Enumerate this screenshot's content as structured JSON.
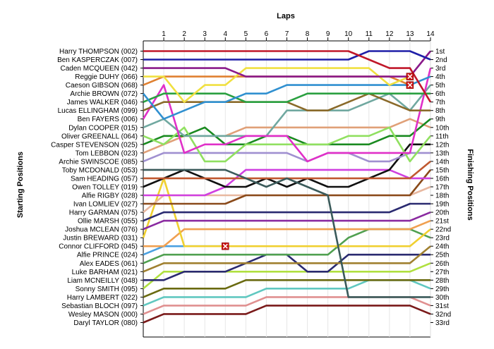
{
  "chart_data": {
    "type": "line",
    "title": "",
    "xlabel": "Laps",
    "ylabel_left": "Starting Positions",
    "ylabel_right": "Finishing Positions",
    "x": [
      0,
      1,
      2,
      3,
      4,
      5,
      6,
      7,
      8,
      9,
      10,
      11,
      12,
      13,
      14
    ],
    "x_tick_labels": [
      "1",
      "2",
      "3",
      "4",
      "5",
      "6",
      "7",
      "8",
      "9",
      "10",
      "11",
      "12",
      "13",
      "14"
    ],
    "y_tick_labels_right": [
      "1st",
      "2nd",
      "3rd",
      "4th",
      "5th",
      "6th",
      "7th",
      "8th",
      "9th",
      "10th",
      "11th",
      "12th",
      "13th",
      "14th",
      "15th",
      "16th",
      "17th",
      "18th",
      "19th",
      "20th",
      "21st",
      "22nd",
      "23rd",
      "24th",
      "25th",
      "26th",
      "27th",
      "28th",
      "29th",
      "30th",
      "31st",
      "32nd",
      "33rd"
    ],
    "grid": true,
    "series": [
      {
        "name": "Harry THOMPSON (002)",
        "color": "#c0182a",
        "positions": [
          1,
          1,
          1,
          1,
          1,
          1,
          1,
          1,
          1,
          1,
          1,
          2,
          3,
          3,
          7
        ]
      },
      {
        "name": "Ben KASPERCZAK (007)",
        "color": "#1f1fa8",
        "positions": [
          2,
          2,
          2,
          2,
          2,
          2,
          2,
          2,
          2,
          2,
          2,
          1,
          1,
          1,
          2
        ]
      },
      {
        "name": "Caden MCQUEEN (042)",
        "color": "#8a1a8a",
        "positions": [
          3,
          3,
          3,
          3,
          3,
          4,
          4,
          4,
          4,
          4,
          4,
          4,
          4,
          4,
          1
        ]
      },
      {
        "name": "Reggie DUHY (066)",
        "color": "#f0e040",
        "positions": [
          4,
          4,
          7,
          5,
          5,
          3,
          3,
          3,
          3,
          3,
          3,
          3,
          5,
          4,
          null
        ],
        "dnf": 13
      },
      {
        "name": "Caeson GIBSON (068)",
        "color": "#e08030",
        "positions": [
          5,
          4,
          4,
          4,
          4,
          4,
          4,
          4,
          4,
          4,
          4,
          4,
          4,
          5,
          null
        ],
        "dnf": 13
      },
      {
        "name": "Archie BROWN (072)",
        "color": "#3090d0",
        "positions": [
          6,
          9,
          8,
          7,
          7,
          6,
          6,
          5,
          5,
          5,
          5,
          5,
          5,
          5,
          4
        ]
      },
      {
        "name": "James WALKER (046)",
        "color": "#2aa040",
        "positions": [
          7,
          6,
          6,
          6,
          6,
          7,
          7,
          7,
          6,
          6,
          6,
          6,
          6,
          6,
          6
        ]
      },
      {
        "name": "Lucas ELLINGHAM (099)",
        "color": "#8a6a2a",
        "positions": [
          8,
          7,
          7,
          7,
          7,
          7,
          7,
          7,
          8,
          8,
          7,
          6,
          7,
          8,
          8
        ]
      },
      {
        "name": "Ben FAYERS (006)",
        "color": "#e030c8",
        "positions": [
          9,
          5,
          13,
          12,
          12,
          11,
          11,
          11,
          14,
          13,
          13,
          13,
          13,
          13,
          3
        ]
      },
      {
        "name": "Dylan COOPER (015)",
        "color": "#70a8a0",
        "positions": [
          10,
          9,
          11,
          11,
          11,
          11,
          11,
          8,
          8,
          8,
          8,
          7,
          6,
          8,
          5
        ]
      },
      {
        "name": "Oliver GREENALL (064)",
        "color": "#90e060",
        "positions": [
          11,
          12,
          10,
          14,
          14,
          12,
          12,
          12,
          12,
          12,
          11,
          11,
          10,
          14,
          11
        ]
      },
      {
        "name": "Casper STEVENSON (025)",
        "color": "#1a8a20",
        "positions": [
          12,
          11,
          11,
          10,
          12,
          12,
          11,
          11,
          12,
          12,
          12,
          12,
          11,
          11,
          9
        ]
      },
      {
        "name": "Tom LEBBON (023)",
        "color": "#e0a078",
        "positions": [
          13,
          12,
          11,
          11,
          11,
          10,
          10,
          10,
          10,
          10,
          10,
          10,
          10,
          9,
          10
        ]
      },
      {
        "name": "Archie SWINSCOE (085)",
        "color": "#a090d0",
        "positions": [
          14,
          13,
          13,
          13,
          13,
          13,
          13,
          13,
          14,
          13,
          13,
          14,
          14,
          13,
          13
        ]
      },
      {
        "name": "Toby MCDONALD (053)",
        "color": "#3a5a5a",
        "positions": [
          15,
          15,
          15,
          15,
          15,
          16,
          17,
          16,
          17,
          18,
          30,
          30,
          30,
          30,
          30
        ]
      },
      {
        "name": "Sam HEADING (057)",
        "color": "#c05830",
        "positions": [
          16,
          16,
          16,
          16,
          16,
          16,
          16,
          16,
          16,
          16,
          16,
          16,
          16,
          16,
          14
        ]
      },
      {
        "name": "Owen TOLLEY (019)",
        "color": "#101010",
        "positions": [
          17,
          16,
          15,
          16,
          17,
          17,
          16,
          17,
          16,
          17,
          17,
          16,
          15,
          12,
          12
        ]
      },
      {
        "name": "Alfie RIGBY (028)",
        "color": "#d040e0",
        "positions": [
          18,
          18,
          18,
          18,
          17,
          15,
          15,
          15,
          15,
          15,
          15,
          15,
          15,
          16,
          16
        ]
      },
      {
        "name": "Ivan LOMLIEV (027)",
        "color": "#8a4a1a",
        "positions": [
          19,
          19,
          19,
          19,
          19,
          18,
          18,
          18,
          18,
          18,
          18,
          18,
          18,
          18,
          15
        ]
      },
      {
        "name": "Harry GARMAN (075)",
        "color": "#e8b8a0",
        "positions": [
          20,
          18,
          18,
          18,
          18,
          18,
          18,
          18,
          18,
          18,
          18,
          18,
          18,
          18,
          17
        ]
      },
      {
        "name": "Ollie MARSH (055)",
        "color": "#2a2a70",
        "positions": [
          21,
          20,
          20,
          20,
          20,
          20,
          20,
          20,
          20,
          20,
          20,
          20,
          20,
          19,
          19
        ]
      },
      {
        "name": "Joshua MCLEAN (076)",
        "color": "#8a2aa0",
        "positions": [
          22,
          21,
          21,
          21,
          21,
          21,
          21,
          21,
          21,
          21,
          21,
          21,
          21,
          21,
          20
        ]
      },
      {
        "name": "Justin BREWARD (031)",
        "color": "#f0d030",
        "positions": [
          23,
          16,
          24,
          24,
          24,
          24,
          24,
          24,
          24,
          24,
          24,
          24,
          24,
          24,
          22
        ]
      },
      {
        "name": "Connor CLIFFORD (045)",
        "color": "#f0a050",
        "positions": [
          24,
          24,
          22,
          22,
          22,
          22,
          22,
          22,
          22,
          22,
          22,
          22,
          22,
          22,
          21
        ]
      },
      {
        "name": "Alfie PRINCE (024)",
        "color": "#4aa0e0",
        "positions": [
          25,
          24,
          24,
          24,
          24,
          null
        ],
        "dnf": 5
      },
      {
        "name": "Alex EADES (061)",
        "color": "#50a050",
        "positions": [
          26,
          25,
          25,
          25,
          25,
          25,
          25,
          25,
          25,
          25,
          23,
          22,
          22,
          22,
          23
        ]
      },
      {
        "name": "Luke BARHAM (021)",
        "color": "#a08030",
        "positions": [
          27,
          26,
          26,
          26,
          26,
          26,
          26,
          26,
          26,
          26,
          26,
          26,
          26,
          26,
          24
        ]
      },
      {
        "name": "Liam MCNEILLY (048)",
        "color": "#2a2a70",
        "positions": [
          28,
          28,
          27,
          27,
          27,
          26,
          25,
          25,
          27,
          27,
          25,
          25,
          25,
          25,
          25
        ]
      },
      {
        "name": "Sonny SMITH (095)",
        "color": "#b0e040",
        "positions": [
          29,
          27,
          27,
          27,
          27,
          27,
          27,
          27,
          27,
          27,
          27,
          27,
          27,
          27,
          26
        ]
      },
      {
        "name": "Harry LAMBERT (022)",
        "color": "#6a6a10",
        "positions": [
          30,
          29,
          29,
          29,
          29,
          28,
          28,
          28,
          28,
          28,
          28,
          28,
          28,
          28,
          28
        ]
      },
      {
        "name": "Sebastian BLOCH (097)",
        "color": "#60c8c0",
        "positions": [
          31,
          30,
          30,
          30,
          30,
          30,
          29,
          29,
          29,
          29,
          29,
          28,
          28,
          28,
          29
        ]
      },
      {
        "name": "Wesley MASON (000)",
        "color": "#e09090",
        "positions": [
          32,
          31,
          31,
          31,
          31,
          31,
          30,
          30,
          30,
          30,
          30,
          30,
          30,
          30,
          31
        ]
      },
      {
        "name": "Daryl TAYLOR (080)",
        "color": "#7a1a1a",
        "positions": [
          33,
          32,
          32,
          32,
          32,
          32,
          31,
          31,
          31,
          31,
          31,
          31,
          31,
          31,
          32
        ]
      }
    ]
  }
}
